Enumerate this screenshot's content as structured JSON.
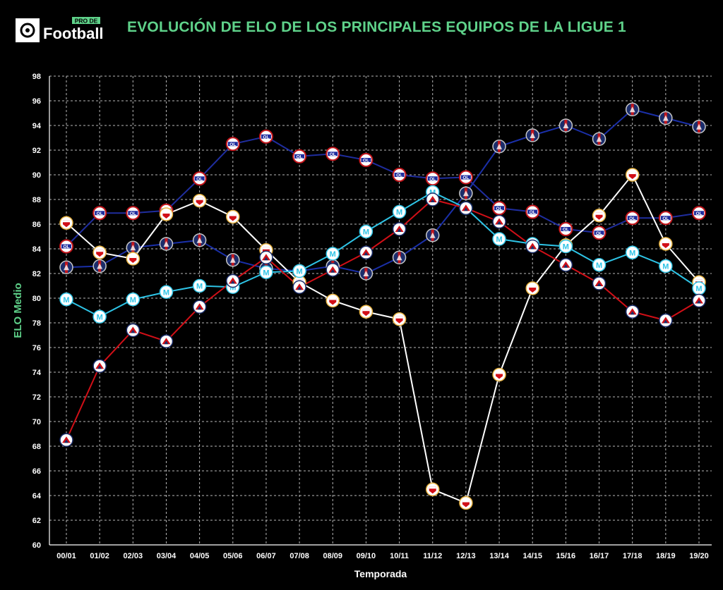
{
  "header": {
    "brand_small": "PRO DE",
    "brand_big": "Football",
    "title": "EVOLUCIÓN DE ELO DE LOS PRINCIPALES EQUIPOS DE LA LIGUE 1"
  },
  "colors": {
    "background": "#000000",
    "title": "#5fd28a",
    "PSG": "#1a2fa8",
    "Lyon": "#1f2d9e",
    "Monaco": "#ffffff",
    "Marseille": "#2ec4e6",
    "Lille": "#d10f17"
  },
  "chart_data": {
    "type": "line",
    "title": "EVOLUCIÓN DE ELO DE LOS PRINCIPALES EQUIPOS DE LA LIGUE 1",
    "xlabel": "Temporada",
    "ylabel": "ELO Medio",
    "ylim": [
      60,
      98
    ],
    "yticks": [
      60,
      62,
      64,
      66,
      68,
      70,
      72,
      74,
      76,
      78,
      80,
      82,
      84,
      86,
      88,
      90,
      92,
      94,
      96,
      98
    ],
    "grid": true,
    "categories": [
      "00/01",
      "01/02",
      "02/03",
      "03/04",
      "04/05",
      "05/06",
      "06/07",
      "07/08",
      "08/09",
      "09/10",
      "10/11",
      "11/12",
      "12/13",
      "13/14",
      "14/15",
      "15/16",
      "16/17",
      "17/18",
      "18/19",
      "19/20"
    ],
    "series": [
      {
        "team": "PSG",
        "icon": "psg-crest-icon",
        "values": [
          82.5,
          82.6,
          84.1,
          84.4,
          84.7,
          83.1,
          82.4,
          82.2,
          82.6,
          82.0,
          83.3,
          85.1,
          88.5,
          92.3,
          93.2,
          94.0,
          92.9,
          95.3,
          94.6,
          93.9
        ]
      },
      {
        "team": "Lyon",
        "icon": "lyon-crest-icon",
        "values": [
          84.2,
          86.9,
          86.9,
          87.1,
          89.7,
          92.5,
          93.1,
          91.5,
          91.7,
          91.2,
          90.0,
          89.7,
          89.8,
          87.3,
          87.0,
          85.6,
          85.3,
          86.5,
          86.5,
          86.9
        ]
      },
      {
        "team": "Monaco",
        "icon": "monaco-crest-icon",
        "values": [
          86.1,
          83.7,
          83.2,
          86.8,
          87.9,
          86.6,
          83.9,
          81.3,
          79.8,
          78.9,
          78.3,
          64.5,
          63.4,
          73.8,
          80.8,
          84.3,
          86.7,
          90.0,
          84.4,
          81.3
        ]
      },
      {
        "team": "Marseille",
        "icon": "marseille-crest-icon",
        "values": [
          79.9,
          78.5,
          79.9,
          80.5,
          81.0,
          80.9,
          82.1,
          82.2,
          83.6,
          85.4,
          87.0,
          88.6,
          87.3,
          84.8,
          84.4,
          84.2,
          82.7,
          83.7,
          82.6,
          80.8
        ]
      },
      {
        "team": "Lille",
        "icon": "lille-crest-icon",
        "values": [
          68.5,
          74.5,
          77.4,
          76.5,
          79.3,
          81.4,
          83.3,
          80.9,
          82.3,
          83.7,
          85.6,
          88.0,
          87.3,
          86.2,
          84.2,
          82.7,
          81.2,
          78.9,
          78.2,
          79.8
        ]
      }
    ]
  }
}
